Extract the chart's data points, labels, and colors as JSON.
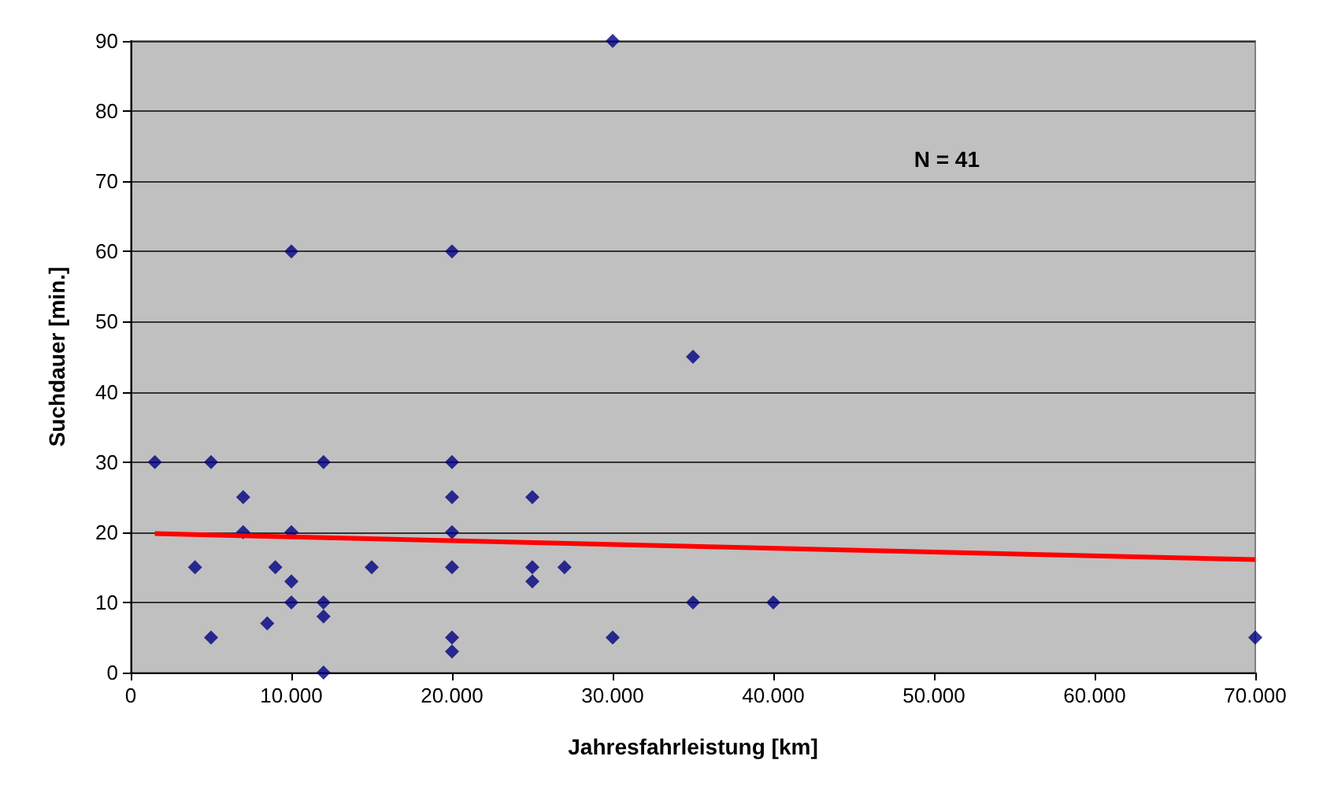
{
  "chart_data": {
    "type": "scatter",
    "xlabel": "Jahresfahrleistung [km]",
    "ylabel": "Suchdauer [min.]",
    "annotations": [
      "N = 41"
    ],
    "xlim": [
      0,
      70000
    ],
    "ylim": [
      0,
      90
    ],
    "xticks": [
      0,
      {
        "value": 10000,
        "label": "10.000"
      },
      {
        "value": 20000,
        "label": "20.000"
      },
      {
        "value": 30000,
        "label": "30.000"
      },
      {
        "value": 40000,
        "label": "40.000"
      },
      {
        "value": 50000,
        "label": "50.000"
      },
      {
        "value": 60000,
        "label": "60.000"
      },
      {
        "value": 70000,
        "label": "70.000"
      }
    ],
    "yticks": [
      0,
      10,
      20,
      30,
      40,
      50,
      60,
      70,
      80,
      90
    ],
    "grid": "y",
    "marker": "diamond",
    "series": [
      {
        "color": "#000080",
        "x": [
          1500,
          5000,
          12000,
          7000,
          7000,
          10000,
          4000,
          9000,
          15000,
          10000,
          10000,
          12000,
          12000,
          8500,
          5000,
          12000,
          20000,
          20000,
          20000,
          25000,
          20000,
          25000,
          25000,
          27000,
          35000,
          40000,
          20000,
          20000,
          30000,
          10000,
          20000,
          35000,
          30000,
          70000
        ],
        "values": [
          30,
          30,
          30,
          25,
          20,
          20,
          15,
          15,
          15,
          13,
          10,
          10,
          8,
          7,
          5,
          0,
          30,
          25,
          20,
          25,
          15,
          15,
          13,
          15,
          10,
          10,
          5,
          3,
          5,
          60,
          60,
          45,
          90,
          5
        ]
      },
      {
        "type": "line",
        "color": "#ff0000",
        "marker": "none",
        "x": [
          1500,
          70000
        ],
        "values": [
          19.8,
          16.1
        ]
      }
    ]
  }
}
